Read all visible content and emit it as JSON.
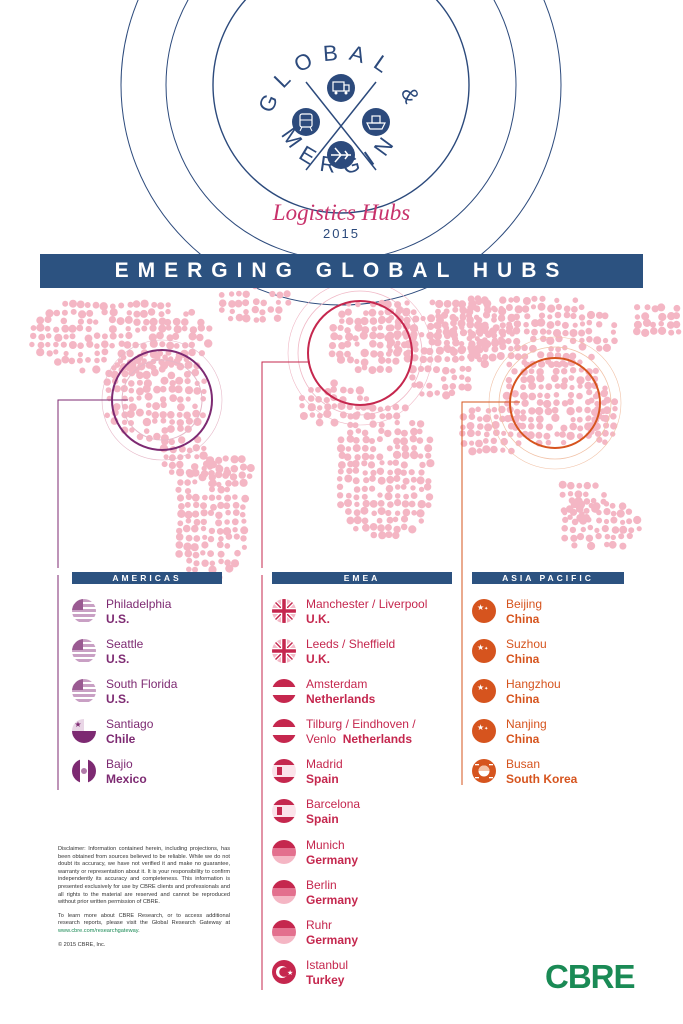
{
  "header": {
    "word_top": "GLOBAL &",
    "word_bottom": "EMERGING",
    "subtitle": "Logistics Hubs",
    "year": "2015"
  },
  "header_icons": [
    "truck-icon",
    "train-icon",
    "ship-icon",
    "plane-icon"
  ],
  "banner": "EMERGING GLOBAL HUBS",
  "regions": {
    "americas": {
      "label": "AMERICAS",
      "color": "#7d2a72",
      "hubs": [
        {
          "city": "Philadelphia",
          "country": "U.S.",
          "flag": "us-flag-icon"
        },
        {
          "city": "Seattle",
          "country": "U.S.",
          "flag": "us-flag-icon"
        },
        {
          "city": "South Florida",
          "country": "U.S.",
          "flag": "us-flag-icon"
        },
        {
          "city": "Santiago",
          "country": "Chile",
          "flag": "chile-flag-icon"
        },
        {
          "city": "Bajio",
          "country": "Mexico",
          "flag": "mexico-flag-icon"
        }
      ]
    },
    "emea": {
      "label": "EMEA",
      "color": "#c5274e",
      "hubs": [
        {
          "city": "Manchester / Liverpool",
          "country": "U.K.",
          "flag": "uk-flag-icon"
        },
        {
          "city": "Leeds / Sheffield",
          "country": "U.K.",
          "flag": "uk-flag-icon"
        },
        {
          "city": "Amsterdam",
          "country": "Netherlands",
          "flag": "netherlands-flag-icon"
        },
        {
          "city": "Tilburg / Eindhoven /",
          "city2": "Venlo",
          "country": "Netherlands",
          "flag": "netherlands-flag-icon"
        },
        {
          "city": "Madrid",
          "country": "Spain",
          "flag": "spain-flag-icon"
        },
        {
          "city": "Barcelona",
          "country": "Spain",
          "flag": "spain-flag-icon"
        },
        {
          "city": "Munich",
          "country": "Germany",
          "flag": "germany-flag-icon"
        },
        {
          "city": "Berlin",
          "country": "Germany",
          "flag": "germany-flag-icon"
        },
        {
          "city": "Ruhr",
          "country": "Germany",
          "flag": "germany-flag-icon"
        },
        {
          "city": "Istanbul",
          "country": "Turkey",
          "flag": "turkey-flag-icon"
        }
      ]
    },
    "asia_pacific": {
      "label": "ASIA PACIFIC",
      "color": "#d6541e",
      "hubs": [
        {
          "city": "Beijing",
          "country": "China",
          "flag": "china-flag-icon"
        },
        {
          "city": "Suzhou",
          "country": "China",
          "flag": "china-flag-icon"
        },
        {
          "city": "Hangzhou",
          "country": "China",
          "flag": "china-flag-icon"
        },
        {
          "city": "Nanjing",
          "country": "China",
          "flag": "china-flag-icon"
        },
        {
          "city": "Busan",
          "country": "South Korea",
          "flag": "south-korea-flag-icon"
        }
      ]
    }
  },
  "disclaimer": {
    "p1": "Disclaimer: Information contained herein, including projections, has been obtained from sources believed to be reliable. While we do not doubt its accuracy, we have not verified it and make no guarantee, warranty or representation about it. It is your responsibility to confirm independently its accuracy and completeness. This information is presented exclusively for use by CBRE clients and professionals and all rights to the material are reserved and cannot be reproduced without prior written permission of CBRE.",
    "p2_text": "To learn more about CBRE Research, or to access additional research reports, please visit the Global Research Gateway at",
    "p2_link": "www.cbre.com/researchgateway",
    "p2_end": ".",
    "copyright": "© 2015 CBRE, Inc."
  },
  "logo": "CBRE",
  "colors": {
    "navy": "#2c5280",
    "map_dots": "#f4b6c4",
    "americas": "#7d2a72",
    "emea": "#c5274e",
    "asia_pacific": "#d6541e",
    "brand_green": "#1a8a55"
  }
}
